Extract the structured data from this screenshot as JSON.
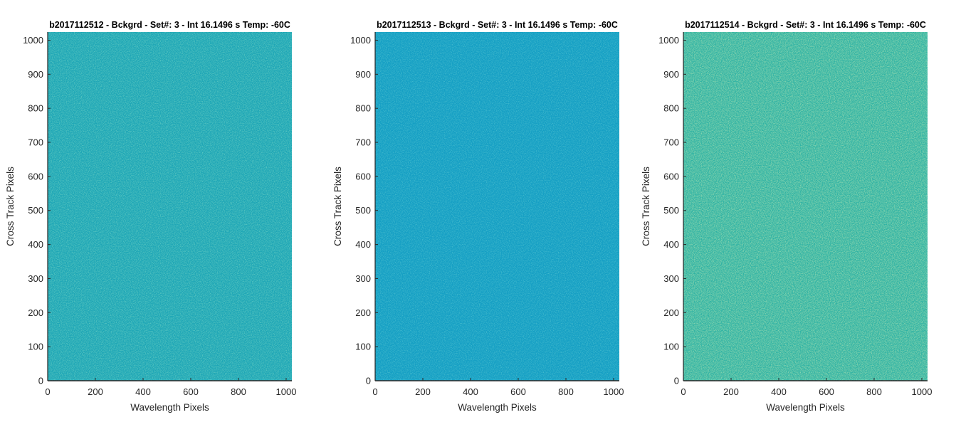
{
  "chart_data": [
    {
      "type": "heatmap",
      "title": "b2017112512 - Bckgrd - Set#: 3 - Int 16.1496 s Temp: -60C",
      "xlabel": "Wavelength Pixels",
      "ylabel": "Cross Track Pixels",
      "xlim": [
        0,
        1024
      ],
      "ylim": [
        0,
        1024
      ],
      "xticks": [
        0,
        200,
        400,
        600,
        800,
        1000
      ],
      "yticks": [
        0,
        100,
        200,
        300,
        400,
        500,
        600,
        700,
        800,
        900,
        1000
      ],
      "grid": false,
      "colormap": "parula",
      "base_color": "#1ea6b6",
      "noise_color": "#3bbd99"
    },
    {
      "type": "heatmap",
      "title": "b2017112513 - Bckgrd - Set#: 3 - Int 16.1496 s Temp: -60C",
      "xlabel": "Wavelength Pixels",
      "ylabel": "Cross Track Pixels",
      "xlim": [
        0,
        1024
      ],
      "ylim": [
        0,
        1024
      ],
      "xticks": [
        0,
        200,
        400,
        600,
        800,
        1000
      ],
      "yticks": [
        0,
        100,
        200,
        300,
        400,
        500,
        600,
        700,
        800,
        900,
        1000
      ],
      "grid": false,
      "colormap": "parula",
      "base_color": "#159fc4",
      "noise_color": "#2aaeae"
    },
    {
      "type": "heatmap",
      "title": "b2017112514 - Bckgrd - Set#: 3 - Int 16.1496 s Temp: -60C",
      "xlabel": "Wavelength Pixels",
      "ylabel": "Cross Track Pixels",
      "xlim": [
        0,
        1024
      ],
      "ylim": [
        0,
        1024
      ],
      "xticks": [
        0,
        200,
        400,
        600,
        800,
        1000
      ],
      "yticks": [
        0,
        100,
        200,
        300,
        400,
        500,
        600,
        700,
        800,
        900,
        1000
      ],
      "grid": false,
      "colormap": "parula",
      "base_color": "#2eb2a4",
      "noise_color": "#6cc47a"
    }
  ]
}
